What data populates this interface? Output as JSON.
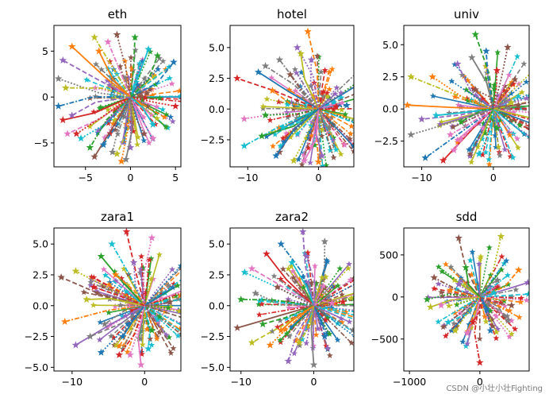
{
  "palette": [
    "#1f77b4",
    "#ff7f0e",
    "#2ca02c",
    "#d62728",
    "#9467bd",
    "#8c564b",
    "#e377c2",
    "#7f7f7f",
    "#bcbd22",
    "#17becf"
  ],
  "watermark": "CSDN @小壮小壮Fighting",
  "chart_data": [
    {
      "type": "scatter",
      "title": "eth",
      "xlim": [
        -8.5,
        5.6
      ],
      "ylim": [
        -7.6,
        7.8
      ],
      "xticks": [
        -5,
        0,
        5
      ],
      "xticklabels": [
        "−5",
        "0",
        "5"
      ],
      "yticks": [
        -5,
        0,
        5
      ],
      "yticklabels": [
        "−5",
        "0",
        "5"
      ],
      "endpoints": [
        [
          4.8,
          3.8
        ],
        [
          5.0,
          -1.0
        ],
        [
          2.5,
          -4.5
        ],
        [
          2.0,
          5.2
        ],
        [
          0.5,
          6.5
        ],
        [
          -1.5,
          6.8
        ],
        [
          -4.0,
          6.5
        ],
        [
          -6.5,
          5.5
        ],
        [
          -7.5,
          4.0
        ],
        [
          -8.0,
          2.0
        ],
        [
          -8.0,
          -1.0
        ],
        [
          -7.5,
          -2.5
        ],
        [
          -7.0,
          -4.0
        ],
        [
          -5.5,
          -4.5
        ],
        [
          -4.5,
          -5.5
        ],
        [
          -4.0,
          -6.5
        ],
        [
          -1.5,
          -6.2
        ],
        [
          -1.0,
          -7.0
        ],
        [
          0.0,
          -5.5
        ],
        [
          -0.5,
          -6.8
        ],
        [
          -3.0,
          -5.2
        ],
        [
          -6.0,
          -4.0
        ],
        [
          -2.5,
          6.0
        ],
        [
          2.5,
          -3.0
        ],
        [
          3.0,
          4.5
        ],
        [
          1.5,
          -4.0
        ],
        [
          -7.2,
          1.0
        ],
        [
          -3.5,
          5.0
        ],
        [
          -6.5,
          -2.0
        ],
        [
          -2.0,
          -6.0
        ]
      ]
    },
    {
      "type": "scatter",
      "title": "hotel",
      "xlim": [
        -12.5,
        5.0
      ],
      "ylim": [
        -4.7,
        6.8
      ],
      "xticks": [
        -10,
        0
      ],
      "xticklabels": [
        "−10",
        "0"
      ],
      "yticks": [
        -2.5,
        0,
        2.5,
        5
      ],
      "yticklabels": [
        "−2.5",
        "0.0",
        "2.5",
        "5.0"
      ],
      "endpoints": [
        [
          -1.5,
          6.3
        ],
        [
          -3.0,
          5.0
        ],
        [
          -5.5,
          4.0
        ],
        [
          -8.5,
          3.0
        ],
        [
          -11.5,
          2.5
        ],
        [
          -10.5,
          -0.8
        ],
        [
          -10.5,
          -3.0
        ],
        [
          -8.0,
          -2.2
        ],
        [
          -5.5,
          -3.5
        ],
        [
          -3.5,
          -4.2
        ],
        [
          0.0,
          -4.3
        ],
        [
          0.5,
          -3.8
        ],
        [
          1.5,
          -1.5
        ],
        [
          4.0,
          0.3
        ],
        [
          2.5,
          0.2
        ],
        [
          -2.0,
          -4.2
        ],
        [
          -5.0,
          -1.5
        ],
        [
          -7.5,
          -0.5
        ],
        [
          -4.0,
          2.8
        ],
        [
          -2.5,
          4.5
        ],
        [
          -6.5,
          1.5
        ],
        [
          -1.0,
          4.0
        ],
        [
          -7.5,
          3.5
        ],
        [
          -6.0,
          -3.8
        ]
      ]
    },
    {
      "type": "scatter",
      "title": "univ",
      "xlim": [
        -12.5,
        5.0
      ],
      "ylim": [
        -4.5,
        6.5
      ],
      "xticks": [
        -10,
        0
      ],
      "xticklabels": [
        "−10",
        "0"
      ],
      "yticks": [
        -2.5,
        0,
        2.5,
        5
      ],
      "yticklabels": [
        "−2.5",
        "0.0",
        "2.5",
        "5.0"
      ],
      "endpoints": [
        [
          -2.5,
          5.8
        ],
        [
          2.0,
          4.8
        ],
        [
          -11.5,
          2.5
        ],
        [
          -12.0,
          0.3
        ],
        [
          -10.0,
          -0.8
        ],
        [
          -11.5,
          -2.0
        ],
        [
          -9.5,
          -3.8
        ],
        [
          -7.0,
          -4.0
        ],
        [
          -5.5,
          -3.2
        ],
        [
          -2.0,
          -3.5
        ],
        [
          0.5,
          -1.5
        ],
        [
          3.5,
          0.3
        ],
        [
          2.5,
          0.5
        ],
        [
          -8.5,
          2.5
        ],
        [
          -5.0,
          3.5
        ],
        [
          -3.0,
          4.0
        ],
        [
          -1.0,
          4.5
        ],
        [
          0.5,
          3.0
        ],
        [
          -6.0,
          -2.0
        ],
        [
          -8.0,
          -0.5
        ],
        [
          -4.5,
          -1.0
        ],
        [
          -2.5,
          1.5
        ]
      ]
    },
    {
      "type": "scatter",
      "title": "zara1",
      "xlim": [
        -12.5,
        5.0
      ],
      "ylim": [
        -5.3,
        6.3
      ],
      "xticks": [
        -10,
        0
      ],
      "xticklabels": [
        "−10",
        "0"
      ],
      "yticks": [
        -5,
        -2.5,
        0,
        2.5,
        5
      ],
      "yticklabels": [
        "−5.0",
        "−2.5",
        "0.0",
        "2.5",
        "5.0"
      ],
      "endpoints": [
        [
          -2.5,
          6.0
        ],
        [
          1.0,
          5.5
        ],
        [
          -4.5,
          5.0
        ],
        [
          -6.0,
          4.0
        ],
        [
          -11.5,
          2.3
        ],
        [
          -9.5,
          2.8
        ],
        [
          -11.0,
          -1.3
        ],
        [
          -9.5,
          -3.2
        ],
        [
          -7.5,
          -2.5
        ],
        [
          -6.0,
          -3.8
        ],
        [
          -3.5,
          -4.0
        ],
        [
          -0.5,
          -4.8
        ],
        [
          0.5,
          -3.5
        ],
        [
          1.0,
          -2.0
        ],
        [
          3.5,
          0.3
        ],
        [
          -8.0,
          0.5
        ],
        [
          -4.0,
          2.5
        ],
        [
          -1.5,
          3.5
        ],
        [
          -5.5,
          -1.5
        ],
        [
          -3.0,
          -2.5
        ],
        [
          -7.0,
          1.5
        ],
        [
          -2.0,
          -4.0
        ]
      ]
    },
    {
      "type": "scatter",
      "title": "zara2",
      "xlim": [
        -11.5,
        5.5
      ],
      "ylim": [
        -5.3,
        6.3
      ],
      "xticks": [
        -10,
        0
      ],
      "xticklabels": [
        "−10",
        "0"
      ],
      "yticks": [
        -5,
        -2.5,
        0,
        2.5,
        5
      ],
      "yticklabels": [
        "−5.0",
        "−2.5",
        "0.0",
        "2.5",
        "5.0"
      ],
      "endpoints": [
        [
          -1.5,
          6.0
        ],
        [
          1.5,
          5.2
        ],
        [
          -4.5,
          5.0
        ],
        [
          -6.5,
          4.2
        ],
        [
          -8.5,
          3.0
        ],
        [
          -9.5,
          2.7
        ],
        [
          -10.0,
          0.5
        ],
        [
          -10.5,
          -1.8
        ],
        [
          -8.5,
          -3.0
        ],
        [
          -6.0,
          -3.2
        ],
        [
          -3.5,
          -4.5
        ],
        [
          0.0,
          -4.8
        ],
        [
          1.5,
          -2.5
        ],
        [
          4.0,
          0.3
        ],
        [
          2.5,
          0.2
        ],
        [
          -3.0,
          3.5
        ],
        [
          -7.0,
          -1.5
        ],
        [
          -5.0,
          1.5
        ],
        [
          -2.0,
          -3.0
        ],
        [
          -4.5,
          -2.0
        ],
        [
          -1.0,
          4.0
        ],
        [
          -8.0,
          1.0
        ]
      ]
    },
    {
      "type": "scatter",
      "title": "sdd",
      "xlim": [
        -1080,
        700
      ],
      "ylim": [
        -880,
        820
      ],
      "xticks": [
        -1000,
        0
      ],
      "xticklabels": [
        "−1000",
        "0"
      ],
      "yticks": [
        -500,
        0,
        500
      ],
      "yticklabels": [
        "−500",
        "0",
        "500"
      ],
      "endpoints": [
        [
          -300,
          700
        ],
        [
          300,
          720
        ],
        [
          550,
          320
        ],
        [
          680,
          170
        ],
        [
          400,
          -280
        ],
        [
          150,
          -400
        ],
        [
          0,
          -780
        ],
        [
          -180,
          -430
        ],
        [
          -450,
          -300
        ],
        [
          -750,
          -30
        ],
        [
          -650,
          230
        ],
        [
          -700,
          -120
        ],
        [
          -420,
          80
        ],
        [
          -300,
          150
        ],
        [
          250,
          200
        ],
        [
          100,
          -150
        ],
        [
          -100,
          -300
        ],
        [
          -550,
          -100
        ],
        [
          200,
          50
        ],
        [
          -200,
          350
        ],
        [
          450,
          -100
        ],
        [
          -350,
          -400
        ]
      ]
    }
  ]
}
